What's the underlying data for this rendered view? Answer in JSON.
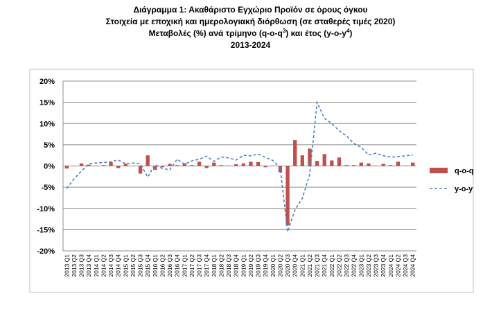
{
  "chart_data": {
    "type": "bar",
    "title_lines": [
      "Διάγραμμα 1: Ακαθάριστο Εγχώριο Προϊόν σε όρους όγκου",
      "Στοιχεία με εποχική και ημερολογιακή διόρθωση (σε σταθερές τιμές 2020)",
      "Μεταβολές (%) ανά τρίμηνο (q-o-q",
      ") και έτος (y-o-y",
      ")",
      "2013-2024"
    ],
    "title_sup": [
      "3",
      "4"
    ],
    "ylim": [
      -20,
      20
    ],
    "yticks": [
      "20%",
      "15%",
      "10%",
      "5%",
      "0%",
      "-5%",
      "-10%",
      "-15%",
      "-20%"
    ],
    "ytick_values": [
      20,
      15,
      10,
      5,
      0,
      -5,
      -10,
      -15,
      -20
    ],
    "grid": true,
    "legend_position": "right",
    "colors": {
      "bar": "#c0504d",
      "line": "#4f81bd",
      "grid": "#8c8c8c",
      "axis": "#8c8c8c"
    },
    "categories": [
      "2013 Q1",
      "2013 Q2",
      "2013 Q3",
      "2013 Q4",
      "2014 Q1",
      "2014 Q2",
      "2014 Q3",
      "2014 Q4",
      "2015 Q1",
      "2015 Q2",
      "2015 Q3",
      "2015 Q4",
      "2016 Q1",
      "2016 Q2",
      "2016 Q3",
      "2016 Q4",
      "2017 Q1",
      "2017 Q2",
      "2017 Q3",
      "2017 Q4",
      "2018 Q1",
      "2018 Q2",
      "2018 Q3",
      "2018 Q4",
      "2019 Q1",
      "2019 Q2",
      "2019 Q3",
      "2019 Q4",
      "2020 Q1",
      "2020 Q2",
      "2020 Q3",
      "2020 Q4",
      "2021 Q1",
      "2021 Q2",
      "2021 Q3",
      "2021 Q4",
      "2022 Q1",
      "2022 Q2",
      "2022 Q3",
      "2022 Q4",
      "2023 Q1",
      "2023 Q2",
      "2023 Q3",
      "2023 Q4",
      "2024 Q1",
      "2024 Q2",
      "2024 Q3",
      "2024 Q4"
    ],
    "series": [
      {
        "name": "q-o-q",
        "kind": "bar",
        "values": [
          -0.6,
          0.0,
          0.6,
          0.3,
          0.0,
          0.2,
          0.9,
          -0.5,
          0.5,
          0.0,
          -1.8,
          2.5,
          -0.9,
          -0.3,
          0.5,
          0.2,
          0.6,
          0.2,
          1.0,
          -0.5,
          0.8,
          0.2,
          0.1,
          0.4,
          0.6,
          1.0,
          0.9,
          -0.3,
          0.1,
          -1.5,
          -14.0,
          6.1,
          2.5,
          4.1,
          1.2,
          2.8,
          1.3,
          2.0,
          0.2,
          0.2,
          0.8,
          0.6,
          0.0,
          0.5,
          0.2,
          1.0,
          0.1,
          0.8
        ]
      },
      {
        "name": "y-o-y",
        "kind": "line",
        "values": [
          -5.3,
          -3.0,
          -1.2,
          0.5,
          0.7,
          0.8,
          1.0,
          1.4,
          0.5,
          0.7,
          0.5,
          -2.6,
          0.3,
          -0.6,
          -0.9,
          1.6,
          0.4,
          1.2,
          1.6,
          2.3,
          1.1,
          2.1,
          1.9,
          1.4,
          2.5,
          2.4,
          2.8,
          2.0,
          1.3,
          -0.5,
          -15.5,
          -10.3,
          -7.6,
          -2.0,
          15.0,
          11.2,
          10.0,
          8.3,
          7.1,
          5.3,
          4.4,
          2.6,
          3.0,
          2.4,
          2.1,
          2.2,
          2.4,
          2.6
        ]
      }
    ]
  }
}
